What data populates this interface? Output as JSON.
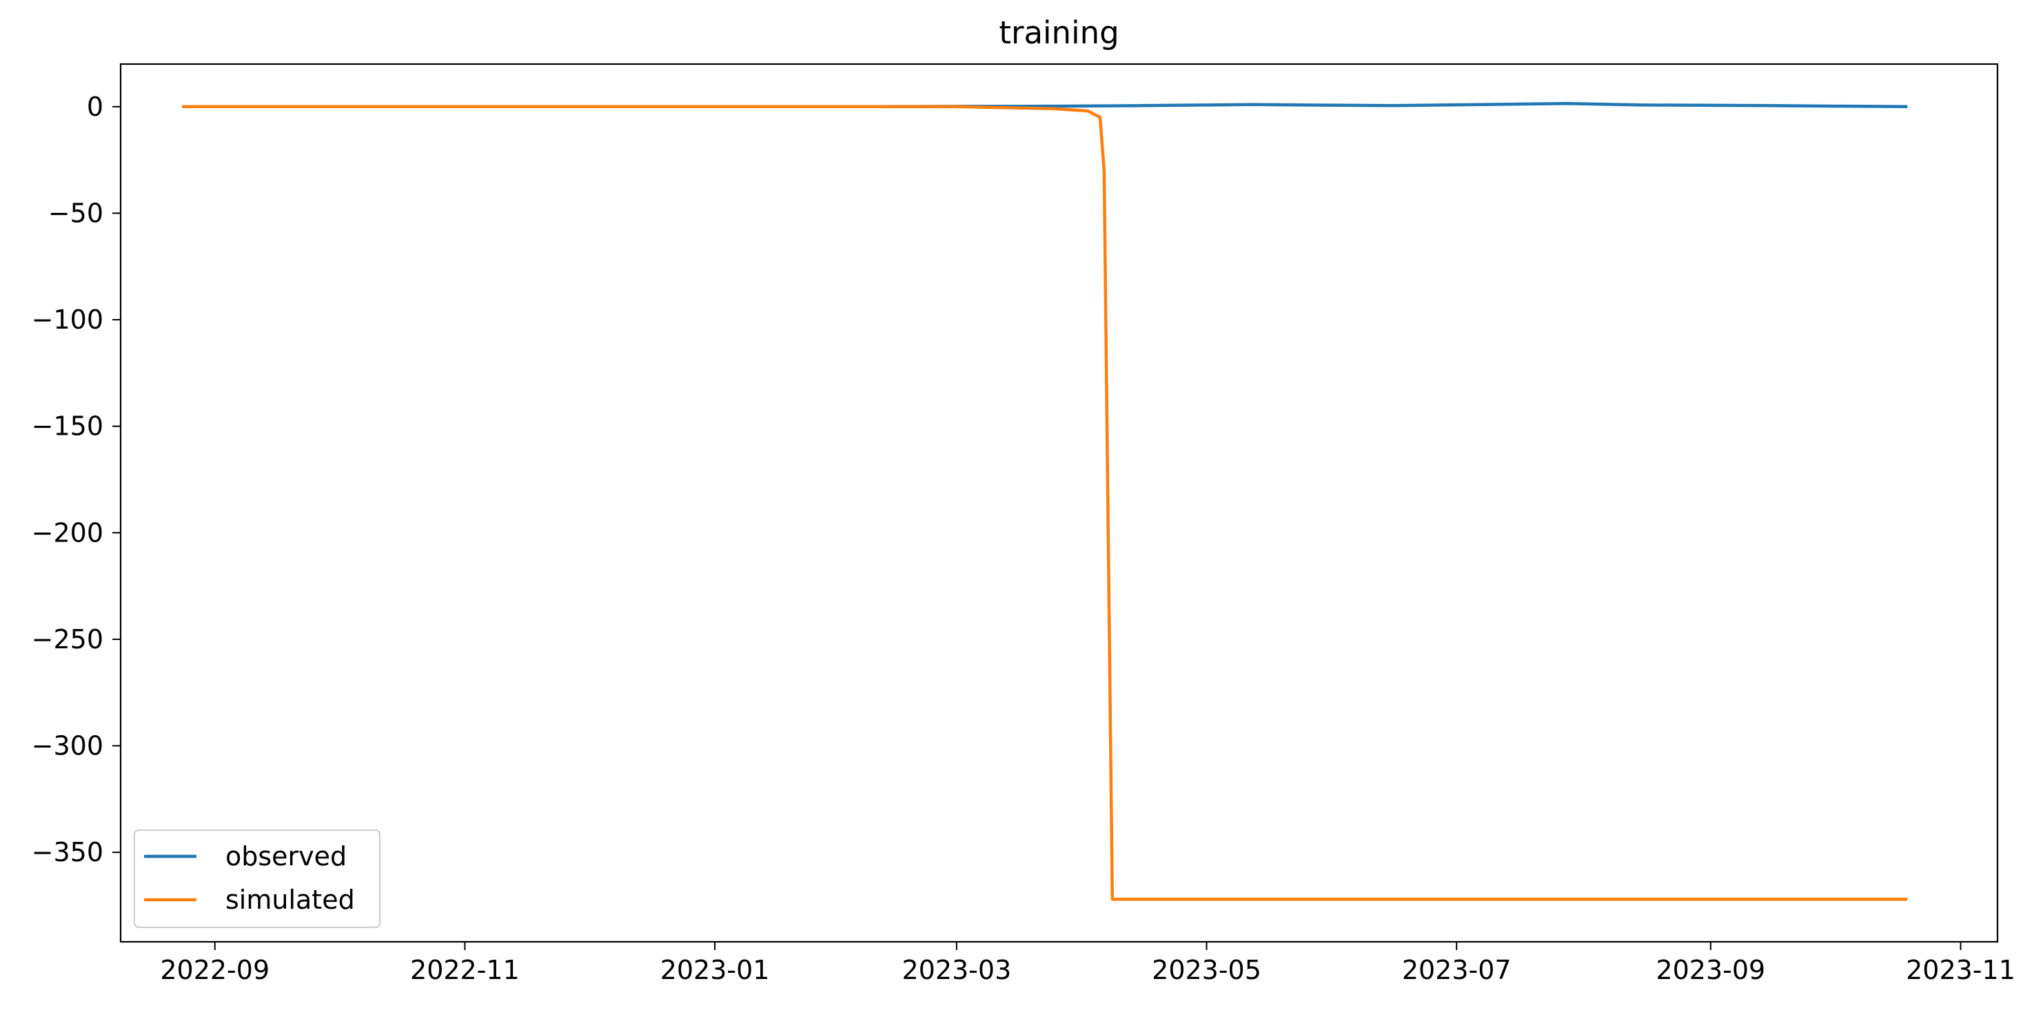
{
  "chart_data": {
    "type": "line",
    "title": "training",
    "xlabel": "",
    "ylabel": "",
    "x_axis": {
      "type": "date",
      "range": [
        "2022-08-09",
        "2023-11-10"
      ],
      "ticks": [
        "2022-09-01",
        "2022-11-01",
        "2023-01-01",
        "2023-03-01",
        "2023-05-01",
        "2023-07-01",
        "2023-09-01",
        "2023-11-01"
      ],
      "tick_labels": [
        "2022-09",
        "2022-11",
        "2023-01",
        "2023-03",
        "2023-05",
        "2023-07",
        "2023-09",
        "2023-11"
      ]
    },
    "y_axis": {
      "range": [
        -392,
        20
      ],
      "ticks": [
        0,
        -50,
        -100,
        -150,
        -200,
        -250,
        -300,
        -350
      ],
      "tick_labels": [
        "0",
        "−50",
        "−100",
        "−150",
        "−200",
        "−250",
        "−300",
        "−350"
      ]
    },
    "grid": false,
    "legend": {
      "placement": "lower-left"
    },
    "series": [
      {
        "name": "observed",
        "color": "#1f77b4",
        "x": [
          "2022-08-24",
          "2022-10-01",
          "2022-12-01",
          "2023-02-01",
          "2023-03-20",
          "2023-04-15",
          "2023-05-12",
          "2023-06-15",
          "2023-07-28",
          "2023-08-15",
          "2023-09-15",
          "2023-10-19"
        ],
        "values": [
          0,
          0,
          0,
          0,
          0.2,
          0.5,
          1,
          0.5,
          1.5,
          0.8,
          0.5,
          0
        ]
      },
      {
        "name": "simulated",
        "color": "#ff7f0e",
        "x": [
          "2022-08-24",
          "2022-10-01",
          "2022-12-01",
          "2023-02-01",
          "2023-03-01",
          "2023-03-25",
          "2023-04-02",
          "2023-04-05",
          "2023-04-06",
          "2023-04-07",
          "2023-04-08",
          "2023-05-01",
          "2023-07-01",
          "2023-09-01",
          "2023-10-19"
        ],
        "values": [
          0,
          0,
          0,
          0,
          0,
          -1,
          -2,
          -5,
          -30,
          -200,
          -372,
          -372,
          -372,
          -372,
          -372
        ]
      }
    ]
  }
}
